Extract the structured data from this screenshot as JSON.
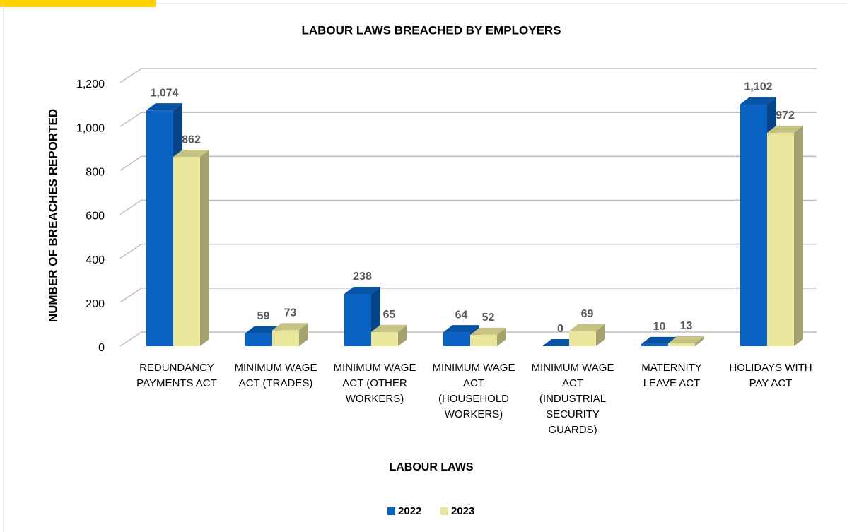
{
  "chart_data": {
    "type": "bar3d",
    "title": "LABOUR LAWS BREACHED BY EMPLOYERS",
    "xlabel": "LABOUR LAWS",
    "ylabel": "NUMBER OF BREACHES REPORTED",
    "categories": [
      "REDUNDANCY PAYMENTS ACT",
      "MINIMUM WAGE ACT (TRADES)",
      "MINIMUM WAGE ACT (OTHER WORKERS)",
      "MINIMUM WAGE ACT (HOUSEHOLD WORKERS)",
      "MINIMUM WAGE ACT (INDUSTRIAL SECURITY GUARDS)",
      "MATERNITY LEAVE ACT",
      "HOLIDAYS WITH PAY ACT"
    ],
    "series": [
      {
        "name": "2022",
        "color": "#0a62c2",
        "values": [
          1074,
          59,
          238,
          64,
          0,
          10,
          1102
        ],
        "value_labels": [
          "1,074",
          "59",
          "238",
          "64",
          "0",
          "10",
          "1,102"
        ]
      },
      {
        "name": "2023",
        "color": "#e9e69c",
        "values": [
          862,
          73,
          65,
          52,
          69,
          13,
          972
        ],
        "value_labels": [
          "862",
          "73",
          "65",
          "52",
          "69",
          "13",
          "972"
        ]
      }
    ],
    "ylim": [
      0,
      1200
    ],
    "yticks": [
      0,
      200,
      400,
      600,
      800,
      {
        "value": 1000,
        "label": "1,000"
      },
      {
        "value": 1200,
        "label": "1,200"
      }
    ],
    "grid": true,
    "legend": "bottom"
  }
}
